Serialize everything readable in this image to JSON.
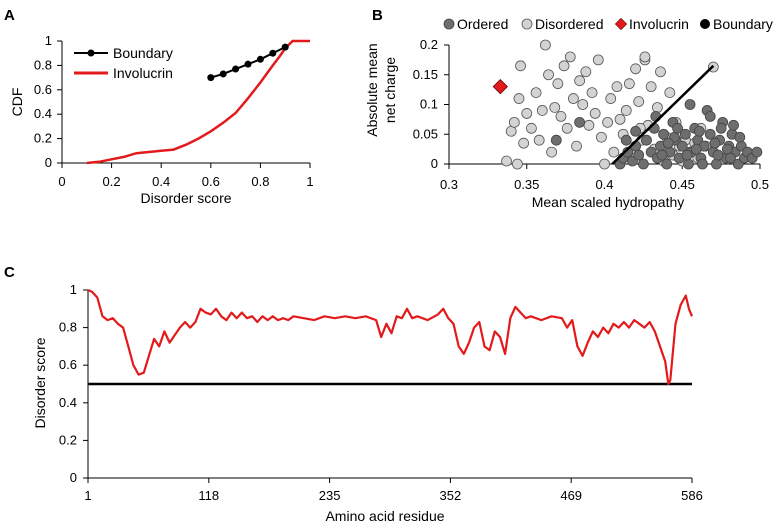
{
  "panels": {
    "a": "A",
    "b": "B",
    "c": "C"
  },
  "chart_data": [
    {
      "id": "A",
      "type": "line",
      "title": "",
      "xlabel": "Disorder score",
      "ylabel": "CDF",
      "xlim": [
        0,
        1
      ],
      "ylim": [
        0,
        1
      ],
      "xticks": [
        "0",
        "0.2",
        "0.4",
        "0.6",
        "0.8",
        "1"
      ],
      "yticks": [
        "0",
        "0.2",
        "0.4",
        "0.6",
        "0.8",
        "1"
      ],
      "legend": {
        "position": "top-left"
      },
      "series": [
        {
          "name": "Boundary",
          "color": "#000000",
          "marker": "circle",
          "x": [
            0.6,
            0.65,
            0.7,
            0.75,
            0.8,
            0.85,
            0.9
          ],
          "y": [
            0.7,
            0.73,
            0.77,
            0.81,
            0.85,
            0.9,
            0.95
          ]
        },
        {
          "name": "Involucrin",
          "color": "#e31a1c",
          "marker": "none",
          "x": [
            0.1,
            0.15,
            0.2,
            0.25,
            0.3,
            0.35,
            0.4,
            0.45,
            0.5,
            0.55,
            0.6,
            0.65,
            0.7,
            0.75,
            0.8,
            0.85,
            0.88,
            0.9,
            0.93,
            0.96,
            1.0
          ],
          "y": [
            0,
            0.01,
            0.03,
            0.05,
            0.08,
            0.09,
            0.1,
            0.11,
            0.15,
            0.2,
            0.26,
            0.33,
            0.41,
            0.53,
            0.66,
            0.8,
            0.88,
            0.94,
            1.0,
            1.0,
            1.0
          ]
        }
      ]
    },
    {
      "id": "B",
      "type": "scatter",
      "title": "",
      "xlabel": "Mean scaled hydropathy",
      "ylabel_lines": [
        "Absolute mean",
        "net charge"
      ],
      "xlim": [
        0.3,
        0.5
      ],
      "ylim": [
        0,
        0.2
      ],
      "xticks": [
        "0.3",
        "0.35",
        "0.4",
        "0.45",
        "0.5"
      ],
      "yticks": [
        "0",
        "0.05",
        "0.1",
        "0.15",
        "0.2"
      ],
      "legend": {
        "position": "top"
      },
      "boundary_line": {
        "x": [
          0.405,
          0.47
        ],
        "y": [
          0,
          0.165
        ]
      },
      "series": [
        {
          "name": "Ordered",
          "color": "#6e6e6e",
          "marker": "circle",
          "points": [
            [
              0.41,
              0.0
            ],
            [
              0.412,
              0.01
            ],
            [
              0.415,
              0.02
            ],
            [
              0.418,
              0.005
            ],
            [
              0.42,
              0.03
            ],
            [
              0.422,
              0.015
            ],
            [
              0.425,
              0.0
            ],
            [
              0.427,
              0.04
            ],
            [
              0.43,
              0.02
            ],
            [
              0.432,
              0.06
            ],
            [
              0.434,
              0.01
            ],
            [
              0.436,
              0.03
            ],
            [
              0.438,
              0.05
            ],
            [
              0.44,
              0.0
            ],
            [
              0.442,
              0.02
            ],
            [
              0.444,
              0.07
            ],
            [
              0.446,
              0.04
            ],
            [
              0.448,
              0.01
            ],
            [
              0.45,
              0.03
            ],
            [
              0.452,
              0.05
            ],
            [
              0.454,
              0.0
            ],
            [
              0.456,
              0.02
            ],
            [
              0.458,
              0.06
            ],
            [
              0.46,
              0.04
            ],
            [
              0.462,
              0.01
            ],
            [
              0.464,
              0.03
            ],
            [
              0.466,
              0.09
            ],
            [
              0.468,
              0.05
            ],
            [
              0.47,
              0.02
            ],
            [
              0.472,
              0.0
            ],
            [
              0.474,
              0.04
            ],
            [
              0.476,
              0.07
            ],
            [
              0.478,
              0.01
            ],
            [
              0.48,
              0.03
            ],
            [
              0.482,
              0.05
            ],
            [
              0.484,
              0.02
            ],
            [
              0.486,
              0.0
            ],
            [
              0.488,
              0.03
            ],
            [
              0.49,
              0.01
            ],
            [
              0.492,
              0.02
            ],
            [
              0.495,
              0.01
            ],
            [
              0.498,
              0.02
            ],
            [
              0.455,
              0.1
            ],
            [
              0.433,
              0.08
            ],
            [
              0.468,
              0.08
            ],
            [
              0.475,
              0.06
            ],
            [
              0.483,
              0.065
            ],
            [
              0.445,
              0.045
            ],
            [
              0.437,
              0.015
            ],
            [
              0.461,
              0.055
            ],
            [
              0.471,
              0.035
            ],
            [
              0.479,
              0.025
            ],
            [
              0.487,
              0.045
            ],
            [
              0.453,
              0.015
            ],
            [
              0.441,
              0.035
            ],
            [
              0.463,
              0.0
            ],
            [
              0.473,
              0.015
            ],
            [
              0.481,
              0.01
            ],
            [
              0.459,
              0.025
            ],
            [
              0.447,
              0.06
            ],
            [
              0.369,
              0.04
            ],
            [
              0.384,
              0.07
            ],
            [
              0.42,
              0.055
            ],
            [
              0.414,
              0.04
            ]
          ]
        },
        {
          "name": "Disordered",
          "color": "#d3d3d3",
          "marker": "circle",
          "points": [
            [
              0.337,
              0.005
            ],
            [
              0.34,
              0.055
            ],
            [
              0.342,
              0.07
            ],
            [
              0.344,
              0.0
            ],
            [
              0.345,
              0.11
            ],
            [
              0.346,
              0.165
            ],
            [
              0.348,
              0.035
            ],
            [
              0.35,
              0.085
            ],
            [
              0.353,
              0.06
            ],
            [
              0.356,
              0.12
            ],
            [
              0.358,
              0.04
            ],
            [
              0.36,
              0.09
            ],
            [
              0.362,
              0.2
            ],
            [
              0.364,
              0.15
            ],
            [
              0.366,
              0.02
            ],
            [
              0.368,
              0.095
            ],
            [
              0.37,
              0.135
            ],
            [
              0.372,
              0.08
            ],
            [
              0.374,
              0.165
            ],
            [
              0.376,
              0.06
            ],
            [
              0.378,
              0.18
            ],
            [
              0.38,
              0.11
            ],
            [
              0.382,
              0.03
            ],
            [
              0.384,
              0.14
            ],
            [
              0.386,
              0.1
            ],
            [
              0.388,
              0.155
            ],
            [
              0.39,
              0.065
            ],
            [
              0.392,
              0.12
            ],
            [
              0.394,
              0.085
            ],
            [
              0.396,
              0.175
            ],
            [
              0.398,
              0.045
            ],
            [
              0.4,
              0.0
            ],
            [
              0.402,
              0.07
            ],
            [
              0.404,
              0.11
            ],
            [
              0.406,
              0.02
            ],
            [
              0.408,
              0.13
            ],
            [
              0.41,
              0.075
            ],
            [
              0.412,
              0.05
            ],
            [
              0.414,
              0.09
            ],
            [
              0.416,
              0.135
            ],
            [
              0.418,
              0.01
            ],
            [
              0.42,
              0.16
            ],
            [
              0.422,
              0.105
            ],
            [
              0.424,
              0.04
            ],
            [
              0.426,
              0.175
            ],
            [
              0.428,
              0.065
            ],
            [
              0.43,
              0.13
            ],
            [
              0.432,
              0.025
            ],
            [
              0.434,
              0.095
            ],
            [
              0.436,
              0.155
            ],
            [
              0.438,
              0.005
            ],
            [
              0.44,
              0.045
            ],
            [
              0.442,
              0.12
            ],
            [
              0.444,
              0.015
            ],
            [
              0.446,
              0.07
            ],
            [
              0.448,
              0.03
            ],
            [
              0.45,
              0.005
            ],
            [
              0.452,
              0.04
            ],
            [
              0.455,
              0.02
            ],
            [
              0.46,
              0.01
            ],
            [
              0.465,
              0.03
            ],
            [
              0.47,
              0.163
            ],
            [
              0.458,
              0.035
            ],
            [
              0.462,
              0.06
            ],
            [
              0.426,
              0.18
            ],
            [
              0.423,
              0.06
            ]
          ]
        },
        {
          "name": "Involucrin",
          "color": "#e31a1c",
          "marker": "diamond",
          "points": [
            [
              0.333,
              0.13
            ]
          ]
        },
        {
          "name": "Boundary",
          "color": "#000000",
          "marker": "circle",
          "points": []
        }
      ]
    },
    {
      "id": "C",
      "type": "line",
      "title": "",
      "xlabel": "Amino acid residue",
      "ylabel": "Disorder score",
      "xlim": [
        1,
        586
      ],
      "ylim": [
        0,
        1
      ],
      "xticks": [
        "1",
        "118",
        "235",
        "352",
        "469",
        "586"
      ],
      "yticks": [
        "0",
        "0.2",
        "0.4",
        "0.6",
        "0.8",
        "1"
      ],
      "threshold": 0.5,
      "series": [
        {
          "name": "Disorder score",
          "color": "#e31a1c",
          "x": [
            1,
            5,
            10,
            15,
            20,
            25,
            30,
            35,
            40,
            45,
            50,
            55,
            60,
            65,
            70,
            75,
            80,
            85,
            90,
            95,
            100,
            105,
            110,
            115,
            120,
            125,
            130,
            135,
            140,
            145,
            150,
            155,
            160,
            165,
            170,
            175,
            180,
            185,
            190,
            195,
            200,
            210,
            220,
            230,
            240,
            250,
            260,
            270,
            280,
            285,
            290,
            295,
            300,
            305,
            310,
            315,
            320,
            330,
            340,
            345,
            350,
            355,
            360,
            365,
            370,
            375,
            380,
            385,
            390,
            395,
            400,
            405,
            410,
            415,
            420,
            425,
            430,
            440,
            450,
            460,
            465,
            470,
            475,
            480,
            485,
            490,
            495,
            500,
            505,
            510,
            515,
            520,
            525,
            530,
            535,
            540,
            545,
            550,
            555,
            560,
            563,
            565,
            570,
            575,
            580,
            583,
            586
          ],
          "y": [
            1.0,
            0.99,
            0.96,
            0.86,
            0.84,
            0.85,
            0.82,
            0.8,
            0.7,
            0.6,
            0.55,
            0.56,
            0.65,
            0.74,
            0.7,
            0.78,
            0.72,
            0.76,
            0.8,
            0.83,
            0.8,
            0.83,
            0.9,
            0.88,
            0.87,
            0.9,
            0.86,
            0.84,
            0.88,
            0.85,
            0.88,
            0.85,
            0.86,
            0.83,
            0.86,
            0.84,
            0.86,
            0.84,
            0.85,
            0.84,
            0.86,
            0.85,
            0.84,
            0.86,
            0.85,
            0.86,
            0.85,
            0.86,
            0.84,
            0.75,
            0.82,
            0.77,
            0.86,
            0.85,
            0.9,
            0.85,
            0.86,
            0.84,
            0.87,
            0.9,
            0.85,
            0.82,
            0.7,
            0.66,
            0.72,
            0.8,
            0.83,
            0.7,
            0.68,
            0.78,
            0.75,
            0.66,
            0.85,
            0.91,
            0.88,
            0.85,
            0.86,
            0.84,
            0.86,
            0.85,
            0.8,
            0.84,
            0.7,
            0.65,
            0.72,
            0.78,
            0.75,
            0.8,
            0.77,
            0.82,
            0.8,
            0.83,
            0.8,
            0.84,
            0.82,
            0.8,
            0.83,
            0.78,
            0.7,
            0.62,
            0.5,
            0.52,
            0.82,
            0.92,
            0.97,
            0.9,
            0.86
          ]
        }
      ]
    }
  ]
}
